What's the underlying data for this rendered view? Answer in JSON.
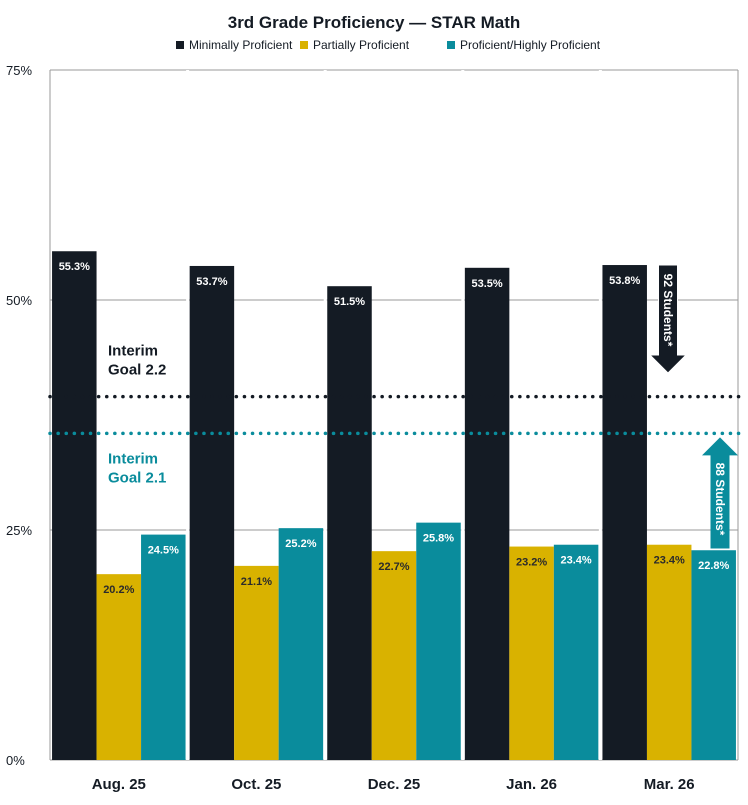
{
  "chart_data": {
    "type": "bar",
    "title": "3rd Grade Proficiency — STAR Math",
    "xlabel": "",
    "ylabel": "",
    "ylim": [
      0,
      75
    ],
    "yticks": [
      0,
      25,
      50,
      75
    ],
    "ytick_labels": [
      "0%",
      "25%",
      "50%",
      "75%"
    ],
    "grid": true,
    "legend_position": "top",
    "categories": [
      "Aug. 25",
      "Oct. 25",
      "Dec. 25",
      "Jan. 26",
      "Mar. 26"
    ],
    "series": [
      {
        "name": "Minimally Proficient",
        "color": "#141b24",
        "values": [
          55.3,
          53.7,
          51.5,
          53.5,
          53.8
        ],
        "labels": [
          "55.3%",
          "53.7%",
          "51.5%",
          "53.5%",
          "53.8%"
        ]
      },
      {
        "name": "Partially Proficient",
        "color": "#d9b200",
        "values": [
          20.2,
          21.1,
          22.7,
          23.2,
          23.4
        ],
        "labels": [
          "20.2%",
          "21.1%",
          "22.7%",
          "23.2%",
          "23.4%"
        ]
      },
      {
        "name": "Proficient/Highly Proficient",
        "color": "#0a8c9c",
        "values": [
          24.5,
          25.2,
          25.8,
          23.4,
          22.8
        ],
        "labels": [
          "24.5%",
          "25.2%",
          "25.8%",
          "23.4%",
          "22.8%"
        ]
      }
    ],
    "reference_lines": [
      {
        "label_line1": "Interim",
        "label_line2": "Goal 2.2",
        "value": 39.5,
        "color": "#141b24"
      },
      {
        "label_line1": "Interim",
        "label_line2": "Goal 2.1",
        "value": 35.5,
        "color": "#0a8c9c"
      }
    ],
    "annotations": [
      {
        "text": "92 Students*",
        "direction": "down",
        "color": "#141b24",
        "from_value": 53.8,
        "to_value": 42.5
      },
      {
        "text": "88 Students*",
        "direction": "up",
        "color": "#0a8c9c",
        "from_value": 23.2,
        "to_value": 35.5
      }
    ]
  }
}
